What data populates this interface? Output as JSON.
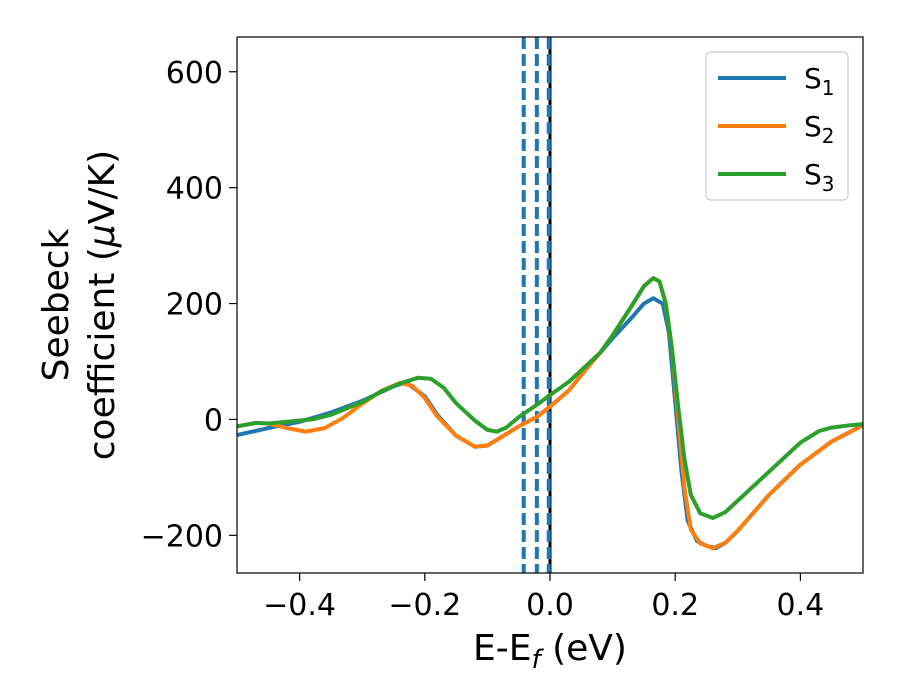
{
  "chart_data": {
    "type": "line",
    "xlabel_main": "E-E",
    "xlabel_sub": "f",
    "xlabel_unit": " (eV)",
    "ylabel_line1": "Seebeck",
    "ylabel_line2_text": "coefficient  (",
    "ylabel_line2_mu": "μ",
    "ylabel_line2_unit": "V/K)",
    "xlim": [
      -0.5,
      0.5
    ],
    "ylim": [
      -265,
      660
    ],
    "xticks": [
      -0.4,
      -0.2,
      0.0,
      0.2,
      0.4
    ],
    "xtick_labels": [
      "−0.4",
      "−0.2",
      "0.0",
      "0.2",
      "0.4"
    ],
    "yticks": [
      -200,
      0,
      200,
      400,
      600
    ],
    "ytick_labels": [
      "−200",
      "0",
      "200",
      "400",
      "600"
    ],
    "legend_position": "top-right",
    "vertical_lines": [
      {
        "x": -0.042,
        "style": "dashed",
        "color": "#1f77b4"
      },
      {
        "x": -0.021,
        "style": "dashed",
        "color": "#1f77b4"
      },
      {
        "x": 0.0,
        "style": "solid",
        "color": "#000000"
      },
      {
        "x": -0.002,
        "style": "dashed",
        "color": "#1f77b4"
      }
    ],
    "series": [
      {
        "name_main": "S",
        "name_sub": "1",
        "color": "#1f77b4",
        "points": [
          [
            -0.5,
            -27
          ],
          [
            -0.45,
            -15
          ],
          [
            -0.4,
            -4
          ],
          [
            -0.35,
            12
          ],
          [
            -0.3,
            32
          ],
          [
            -0.25,
            57
          ],
          [
            -0.23,
            64
          ],
          [
            -0.2,
            40
          ],
          [
            -0.18,
            8
          ],
          [
            -0.15,
            -28
          ],
          [
            -0.12,
            -47
          ],
          [
            -0.1,
            -45
          ],
          [
            -0.08,
            -32
          ],
          [
            -0.05,
            -12
          ],
          [
            -0.02,
            5
          ],
          [
            0.0,
            22
          ],
          [
            0.03,
            50
          ],
          [
            0.06,
            90
          ],
          [
            0.08,
            115
          ],
          [
            0.1,
            140
          ],
          [
            0.13,
            175
          ],
          [
            0.15,
            200
          ],
          [
            0.165,
            209
          ],
          [
            0.18,
            200
          ],
          [
            0.19,
            150
          ],
          [
            0.2,
            30
          ],
          [
            0.21,
            -90
          ],
          [
            0.22,
            -175
          ],
          [
            0.235,
            -210
          ],
          [
            0.25,
            -218
          ],
          [
            0.265,
            -222
          ],
          [
            0.28,
            -213
          ],
          [
            0.3,
            -192
          ],
          [
            0.35,
            -130
          ],
          [
            0.4,
            -78
          ],
          [
            0.45,
            -38
          ],
          [
            0.5,
            -10
          ]
        ]
      },
      {
        "name_main": "S",
        "name_sub": "2",
        "color": "#ff7f0e",
        "points": [
          [
            -0.5,
            -12
          ],
          [
            -0.47,
            -6
          ],
          [
            -0.45,
            -7
          ],
          [
            -0.42,
            -15
          ],
          [
            -0.39,
            -21
          ],
          [
            -0.36,
            -15
          ],
          [
            -0.33,
            3
          ],
          [
            -0.3,
            27
          ],
          [
            -0.27,
            49
          ],
          [
            -0.24,
            63
          ],
          [
            -0.22,
            58
          ],
          [
            -0.2,
            37
          ],
          [
            -0.18,
            5
          ],
          [
            -0.15,
            -28
          ],
          [
            -0.12,
            -47
          ],
          [
            -0.1,
            -45
          ],
          [
            -0.08,
            -32
          ],
          [
            -0.05,
            -12
          ],
          [
            -0.02,
            5
          ],
          [
            0.0,
            22
          ],
          [
            0.03,
            50
          ],
          [
            0.06,
            90
          ],
          [
            0.08,
            115
          ],
          [
            0.1,
            145
          ],
          [
            0.13,
            195
          ],
          [
            0.15,
            230
          ],
          [
            0.165,
            244
          ],
          [
            0.175,
            238
          ],
          [
            0.185,
            200
          ],
          [
            0.195,
            120
          ],
          [
            0.205,
            0
          ],
          [
            0.215,
            -120
          ],
          [
            0.225,
            -190
          ],
          [
            0.24,
            -214
          ],
          [
            0.26,
            -222
          ],
          [
            0.28,
            -213
          ],
          [
            0.3,
            -192
          ],
          [
            0.35,
            -130
          ],
          [
            0.4,
            -78
          ],
          [
            0.45,
            -38
          ],
          [
            0.5,
            -10
          ]
        ]
      },
      {
        "name_main": "S",
        "name_sub": "3",
        "color": "#2ca02c",
        "points": [
          [
            -0.5,
            -12
          ],
          [
            -0.47,
            -6
          ],
          [
            -0.45,
            -7
          ],
          [
            -0.42,
            -4
          ],
          [
            -0.38,
            0
          ],
          [
            -0.35,
            8
          ],
          [
            -0.3,
            30
          ],
          [
            -0.27,
            48
          ],
          [
            -0.24,
            62
          ],
          [
            -0.21,
            72
          ],
          [
            -0.19,
            70
          ],
          [
            -0.17,
            55
          ],
          [
            -0.15,
            28
          ],
          [
            -0.12,
            -2
          ],
          [
            -0.1,
            -18
          ],
          [
            -0.085,
            -21
          ],
          [
            -0.07,
            -14
          ],
          [
            -0.05,
            4
          ],
          [
            -0.02,
            26
          ],
          [
            0.0,
            42
          ],
          [
            0.03,
            65
          ],
          [
            0.06,
            95
          ],
          [
            0.08,
            115
          ],
          [
            0.1,
            145
          ],
          [
            0.13,
            195
          ],
          [
            0.15,
            230
          ],
          [
            0.165,
            244
          ],
          [
            0.175,
            238
          ],
          [
            0.185,
            200
          ],
          [
            0.195,
            120
          ],
          [
            0.205,
            20
          ],
          [
            0.215,
            -70
          ],
          [
            0.225,
            -130
          ],
          [
            0.24,
            -162
          ],
          [
            0.26,
            -170
          ],
          [
            0.28,
            -160
          ],
          [
            0.3,
            -140
          ],
          [
            0.35,
            -90
          ],
          [
            0.4,
            -40
          ],
          [
            0.43,
            -20
          ],
          [
            0.45,
            -14
          ],
          [
            0.48,
            -10
          ],
          [
            0.5,
            -8
          ]
        ]
      }
    ]
  }
}
